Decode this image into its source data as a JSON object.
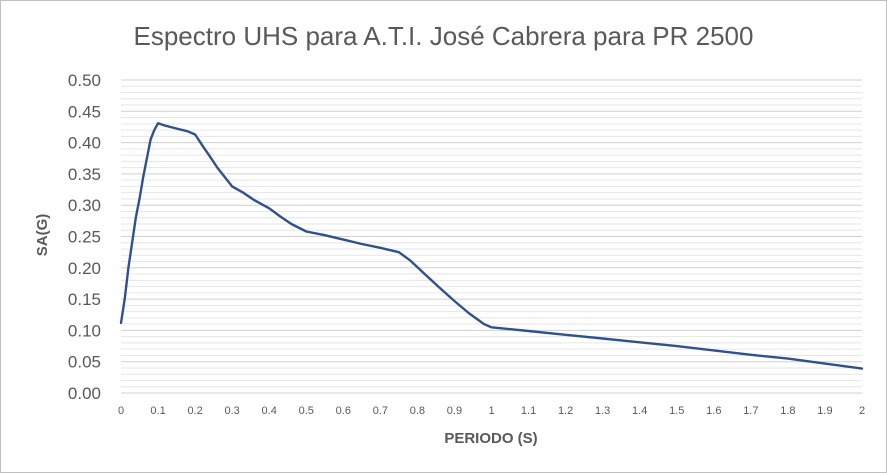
{
  "chart_data": {
    "type": "line",
    "title": "Espectro UHS para A.T.I. José Cabrera para PR 2500",
    "xlabel": "PERIODO (S)",
    "ylabel": "SA(G)",
    "xlim": [
      0,
      2
    ],
    "ylim": [
      0,
      0.5
    ],
    "x_ticks": [
      "0",
      "0.1",
      "0.2",
      "0.3",
      "0.4",
      "0.5",
      "0.6",
      "0.7",
      "0.8",
      "0.9",
      "1",
      "1.1",
      "1.2",
      "1.3",
      "1.4",
      "1.5",
      "1.6",
      "1.7",
      "1.8",
      "1.9",
      "2"
    ],
    "y_ticks": [
      "0.50",
      "0.45",
      "0.40",
      "0.35",
      "0.30",
      "0.25",
      "0.20",
      "0.15",
      "0.10",
      "0.05",
      "0.00"
    ],
    "grid": true,
    "line_color": "#2f528f",
    "series": [
      {
        "x": [
          0,
          0.01,
          0.02,
          0.03,
          0.04,
          0.05,
          0.06,
          0.07,
          0.08,
          0.09,
          0.1,
          0.12,
          0.14,
          0.16,
          0.18,
          0.2,
          0.22,
          0.24,
          0.26,
          0.28,
          0.3,
          0.33,
          0.36,
          0.4,
          0.43,
          0.46,
          0.5,
          0.55,
          0.6,
          0.65,
          0.7,
          0.75,
          0.78,
          0.82,
          0.86,
          0.9,
          0.94,
          0.98,
          1.0,
          1.1,
          1.2,
          1.3,
          1.4,
          1.5,
          1.6,
          1.7,
          1.8,
          1.9,
          2.0
        ],
        "y": [
          0.112,
          0.15,
          0.2,
          0.24,
          0.28,
          0.31,
          0.345,
          0.375,
          0.405,
          0.42,
          0.431,
          0.427,
          0.424,
          0.421,
          0.418,
          0.413,
          0.395,
          0.378,
          0.36,
          0.345,
          0.33,
          0.32,
          0.308,
          0.295,
          0.282,
          0.27,
          0.258,
          0.252,
          0.245,
          0.238,
          0.232,
          0.225,
          0.212,
          0.19,
          0.168,
          0.147,
          0.127,
          0.11,
          0.105,
          0.099,
          0.093,
          0.087,
          0.081,
          0.075,
          0.068,
          0.061,
          0.055,
          0.047,
          0.039
        ]
      }
    ]
  }
}
